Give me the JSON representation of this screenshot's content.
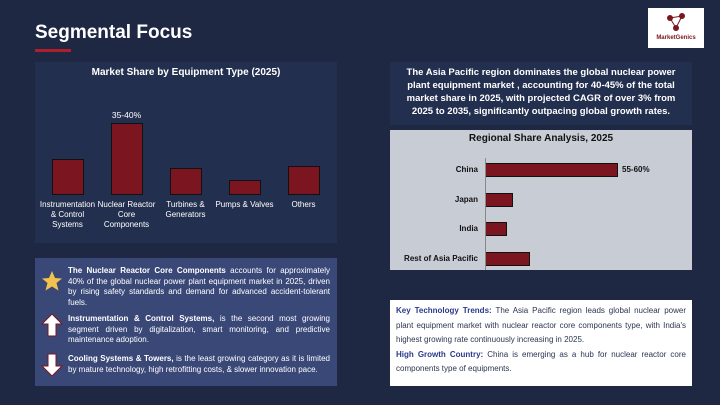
{
  "header": {
    "title": "Segmental Focus",
    "logo": "MarketGenics"
  },
  "chart_data": [
    {
      "type": "bar",
      "title": "Market Share by Equipment Type (2025)",
      "categories": [
        "Instrumentation & Control Systems",
        "Nuclear Reactor Core Components",
        "Turbines & Generators",
        "Pumps & Valves",
        "Others"
      ],
      "values": [
        19,
        37.5,
        14,
        8,
        15
      ],
      "value_labels": [
        null,
        "35-40%",
        null,
        null,
        null
      ],
      "color": "#7b1620"
    },
    {
      "type": "hbar",
      "title": "Regional Share Analysis, 2025",
      "categories": [
        "China",
        "Japan",
        "India",
        "Rest of Asia Pacific"
      ],
      "values": [
        57.5,
        12,
        9.5,
        19.5
      ],
      "value_labels": [
        "55-60%",
        null,
        null,
        null
      ],
      "color": "#7b1620"
    }
  ],
  "callout": "The Asia Pacific region dominates the global nuclear power plant equipment market , accounting for 40-45% of the total market share in 2025, with projected CAGR of over 3% from 2025 to 2035, significantly outpacing global growth rates.",
  "highlights": [
    {
      "bold": "The Nuclear Reactor Core Components",
      "text": " accounts for approximately 40% of the global nuclear power plant equipment market in 2025, driven by rising safety standards and demand for advanced accident-tolerant fuels."
    },
    {
      "bold": "Instrumentation & Control Systems,",
      "text": " is the second most growing segment driven by digitalization, smart monitoring, and predictive maintenance adoption."
    },
    {
      "bold": "Cooling Systems & Towers,",
      "text": " is the least growing category as it is limited by mature technology, high retrofitting costs, & slower innovation pace."
    }
  ],
  "notes": [
    {
      "label": "Key Technology Trends:",
      "text": " The Asia Pacific region leads global nuclear power plant equipment market with nuclear reactor core components type, with India's highest growing rate continuously increasing in 2025."
    },
    {
      "label": "High Growth Country:",
      "text": " China is emerging as a hub for nuclear reactor core components type of equipments."
    }
  ]
}
